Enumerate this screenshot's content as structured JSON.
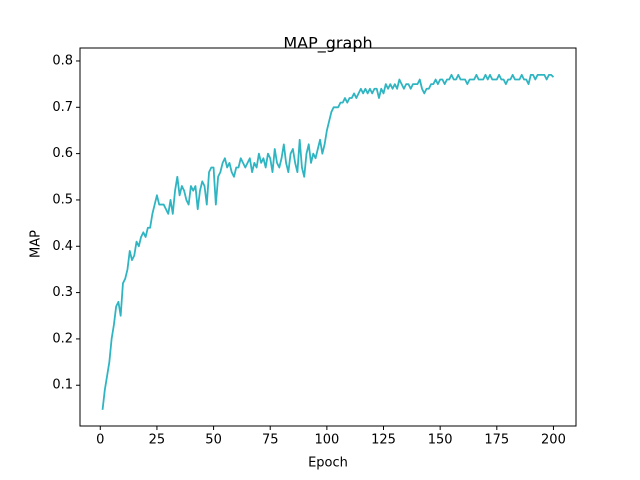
{
  "chart_data": {
    "type": "line",
    "title": "MAP_graph",
    "x_label": "Epoch",
    "y_label": "MAP",
    "x": [
      1,
      2,
      3,
      4,
      5,
      6,
      7,
      8,
      9,
      10,
      11,
      12,
      13,
      14,
      15,
      16,
      17,
      18,
      19,
      20,
      21,
      22,
      23,
      24,
      25,
      26,
      27,
      28,
      29,
      30,
      31,
      32,
      33,
      34,
      35,
      36,
      37,
      38,
      39,
      40,
      41,
      42,
      43,
      44,
      45,
      46,
      47,
      48,
      49,
      50,
      51,
      52,
      53,
      54,
      55,
      56,
      57,
      58,
      59,
      60,
      61,
      62,
      63,
      64,
      65,
      66,
      67,
      68,
      69,
      70,
      71,
      72,
      73,
      74,
      75,
      76,
      77,
      78,
      79,
      80,
      81,
      82,
      83,
      84,
      85,
      86,
      87,
      88,
      89,
      90,
      91,
      92,
      93,
      94,
      95,
      96,
      97,
      98,
      99,
      100,
      101,
      102,
      103,
      104,
      105,
      106,
      107,
      108,
      109,
      110,
      111,
      112,
      113,
      114,
      115,
      116,
      117,
      118,
      119,
      120,
      121,
      122,
      123,
      124,
      125,
      126,
      127,
      128,
      129,
      130,
      131,
      132,
      133,
      134,
      135,
      136,
      137,
      138,
      139,
      140,
      141,
      142,
      143,
      144,
      145,
      146,
      147,
      148,
      149,
      150,
      151,
      152,
      153,
      154,
      155,
      156,
      157,
      158,
      159,
      160,
      161,
      162,
      163,
      164,
      165,
      166,
      167,
      168,
      169,
      170,
      171,
      172,
      173,
      174,
      175,
      176,
      177,
      178,
      179,
      180,
      181,
      182,
      183,
      184,
      185,
      186,
      187,
      188,
      189,
      190,
      191,
      192,
      193,
      194,
      195,
      196,
      197,
      198,
      199,
      200
    ],
    "series": [
      {
        "name": "MAP",
        "color": "#2fb5c2",
        "values": [
          0.047,
          0.09,
          0.12,
          0.15,
          0.2,
          0.23,
          0.27,
          0.28,
          0.25,
          0.32,
          0.33,
          0.35,
          0.39,
          0.37,
          0.38,
          0.41,
          0.4,
          0.42,
          0.43,
          0.42,
          0.44,
          0.44,
          0.47,
          0.49,
          0.51,
          0.49,
          0.49,
          0.49,
          0.48,
          0.47,
          0.5,
          0.47,
          0.52,
          0.55,
          0.51,
          0.53,
          0.52,
          0.5,
          0.49,
          0.53,
          0.52,
          0.53,
          0.48,
          0.52,
          0.54,
          0.53,
          0.49,
          0.56,
          0.57,
          0.57,
          0.49,
          0.55,
          0.56,
          0.58,
          0.59,
          0.57,
          0.58,
          0.56,
          0.55,
          0.57,
          0.57,
          0.59,
          0.58,
          0.57,
          0.58,
          0.59,
          0.56,
          0.58,
          0.57,
          0.6,
          0.58,
          0.59,
          0.57,
          0.6,
          0.59,
          0.56,
          0.61,
          0.58,
          0.57,
          0.59,
          0.62,
          0.58,
          0.56,
          0.6,
          0.61,
          0.58,
          0.56,
          0.63,
          0.57,
          0.55,
          0.6,
          0.62,
          0.58,
          0.6,
          0.59,
          0.61,
          0.63,
          0.6,
          0.62,
          0.65,
          0.67,
          0.69,
          0.7,
          0.7,
          0.7,
          0.71,
          0.71,
          0.72,
          0.71,
          0.72,
          0.72,
          0.73,
          0.72,
          0.73,
          0.74,
          0.73,
          0.74,
          0.73,
          0.74,
          0.73,
          0.74,
          0.74,
          0.72,
          0.74,
          0.73,
          0.75,
          0.74,
          0.75,
          0.74,
          0.75,
          0.74,
          0.76,
          0.75,
          0.74,
          0.75,
          0.75,
          0.74,
          0.75,
          0.75,
          0.75,
          0.76,
          0.74,
          0.73,
          0.74,
          0.74,
          0.75,
          0.75,
          0.76,
          0.75,
          0.76,
          0.76,
          0.75,
          0.76,
          0.76,
          0.77,
          0.76,
          0.76,
          0.77,
          0.76,
          0.76,
          0.76,
          0.75,
          0.76,
          0.76,
          0.76,
          0.77,
          0.76,
          0.76,
          0.76,
          0.77,
          0.76,
          0.77,
          0.76,
          0.76,
          0.76,
          0.77,
          0.76,
          0.76,
          0.75,
          0.76,
          0.76,
          0.77,
          0.76,
          0.76,
          0.76,
          0.77,
          0.76,
          0.76,
          0.75,
          0.77,
          0.77,
          0.76,
          0.77,
          0.77,
          0.77,
          0.77,
          0.76,
          0.77,
          0.77,
          0.765
        ]
      }
    ],
    "xlim": [
      -8.95,
      209.95
    ],
    "xticks": [
      0,
      25,
      50,
      75,
      100,
      125,
      150,
      175,
      200
    ],
    "ylim": [
      0.012,
      0.828
    ],
    "yticks": [
      0.1,
      0.2,
      0.3,
      0.4,
      0.5,
      0.6,
      0.7,
      0.8
    ]
  }
}
